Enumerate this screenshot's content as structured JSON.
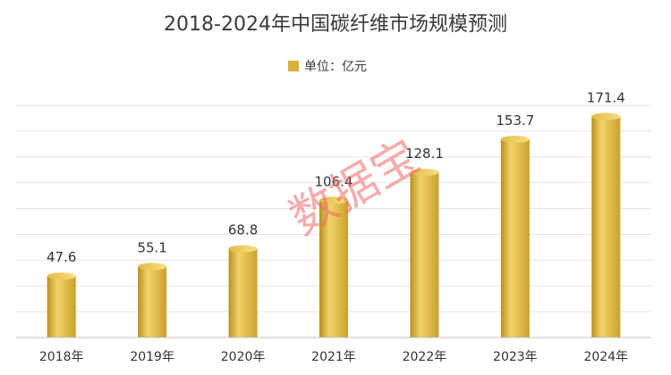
{
  "chart_data": {
    "type": "bar",
    "title": "2018-2024年中国碳纤维市场规模预测",
    "legend": "单位：亿元",
    "categories": [
      "2018年",
      "2019年",
      "2020年",
      "2021年",
      "2022年",
      "2023年",
      "2024年"
    ],
    "series": [
      {
        "values": [
          47.6,
          55.1,
          68.8,
          106.4,
          128.1,
          153.7,
          171.4
        ]
      }
    ],
    "ylim": [
      0,
      180
    ],
    "grid": true,
    "legend_position": "top-center",
    "colors": {
      "bar_light": "#f3d36a",
      "bar_mid": "#d9b23a",
      "bar_dark": "#b8901f",
      "grid": "#e6e6e6",
      "axis": "#bfbfbf"
    }
  },
  "watermark": "数据宝"
}
